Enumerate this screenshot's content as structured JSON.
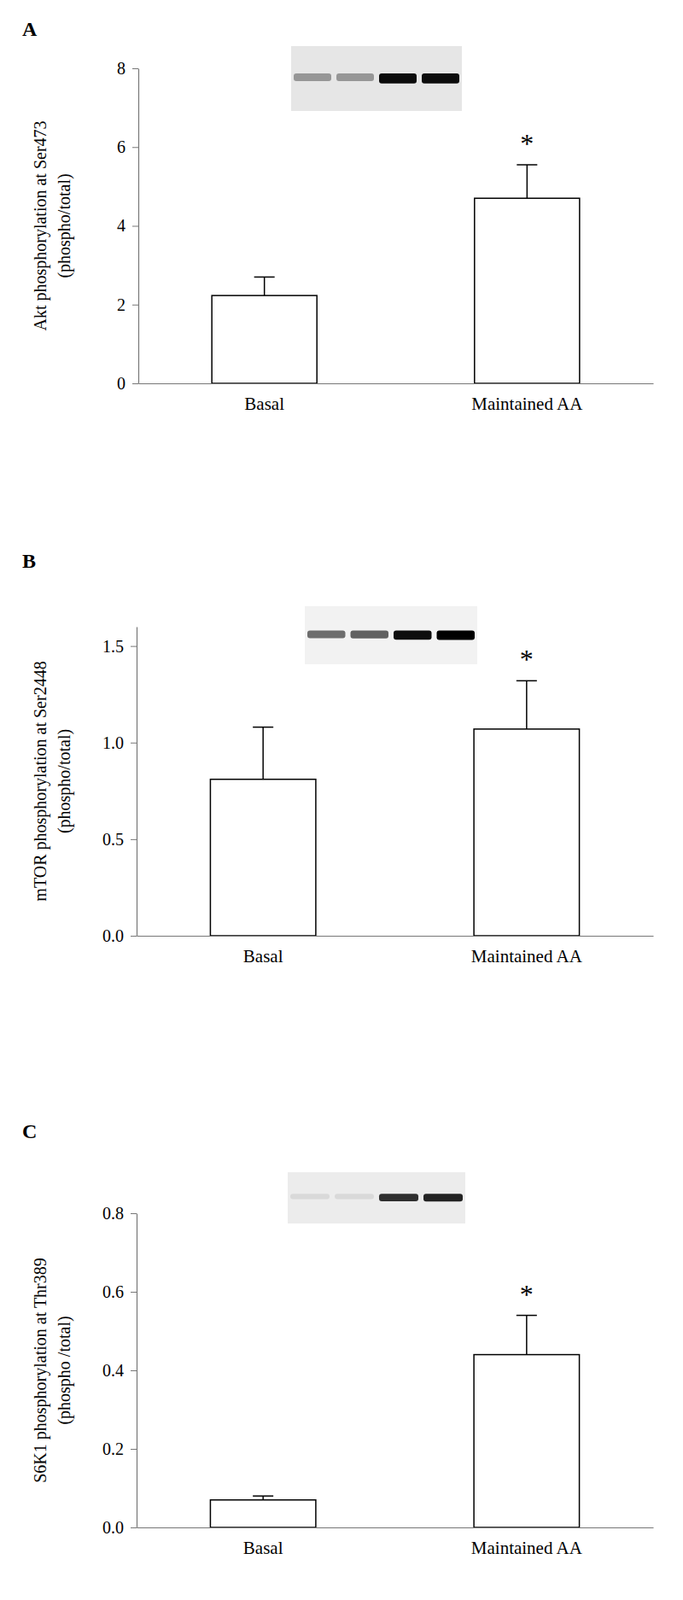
{
  "chart_data": [
    {
      "type": "bar",
      "title": "A",
      "y_label": [
        "Akt phosphorylation at Ser473",
        "(phospho/total)"
      ],
      "categories": [
        "Basal",
        "Maintained AA"
      ],
      "values": [
        2.23,
        4.7
      ],
      "errors": [
        0.47,
        0.85
      ],
      "color": "#ffffff",
      "ylim": [
        0,
        8
      ],
      "yticks": [
        0,
        2,
        4,
        6,
        8
      ],
      "annotation": "*"
    },
    {
      "type": "bar",
      "title": "B",
      "y_label": [
        "mTOR phosphorylation at Ser2448",
        "(phospho/total)"
      ],
      "categories": [
        "Basal",
        "Maintained AA"
      ],
      "values": [
        0.81,
        1.07
      ],
      "errors": [
        0.27,
        0.25
      ],
      "color": "#ffffff",
      "ylim": [
        0,
        1.6
      ],
      "yticks": [
        {
          "value": 0,
          "label": "0.0"
        },
        {
          "value": 0.5,
          "label": "0.5"
        },
        {
          "value": 1,
          "label": "1.0"
        },
        {
          "value": 1.5,
          "label": "1.5"
        }
      ],
      "annotation": "*"
    },
    {
      "type": "bar",
      "title": "C",
      "y_label": [
        "S6K1 phosphorylation at Thr389",
        "(phospho /total)"
      ],
      "categories": [
        "Basal",
        "Maintained AA"
      ],
      "values": [
        0.07,
        0.44
      ],
      "errors": [
        0.01,
        0.1
      ],
      "color": "#ffffff",
      "ylim": [
        0,
        0.8
      ],
      "yticks": [
        {
          "value": 0,
          "label": "0.0"
        },
        {
          "value": 0.2,
          "label": "0.2"
        },
        {
          "value": 0.4,
          "label": "0.4"
        },
        {
          "value": 0.6,
          "label": "0.6"
        },
        {
          "value": 0.8,
          "label": "0.8"
        }
      ],
      "annotation": "*"
    }
  ]
}
